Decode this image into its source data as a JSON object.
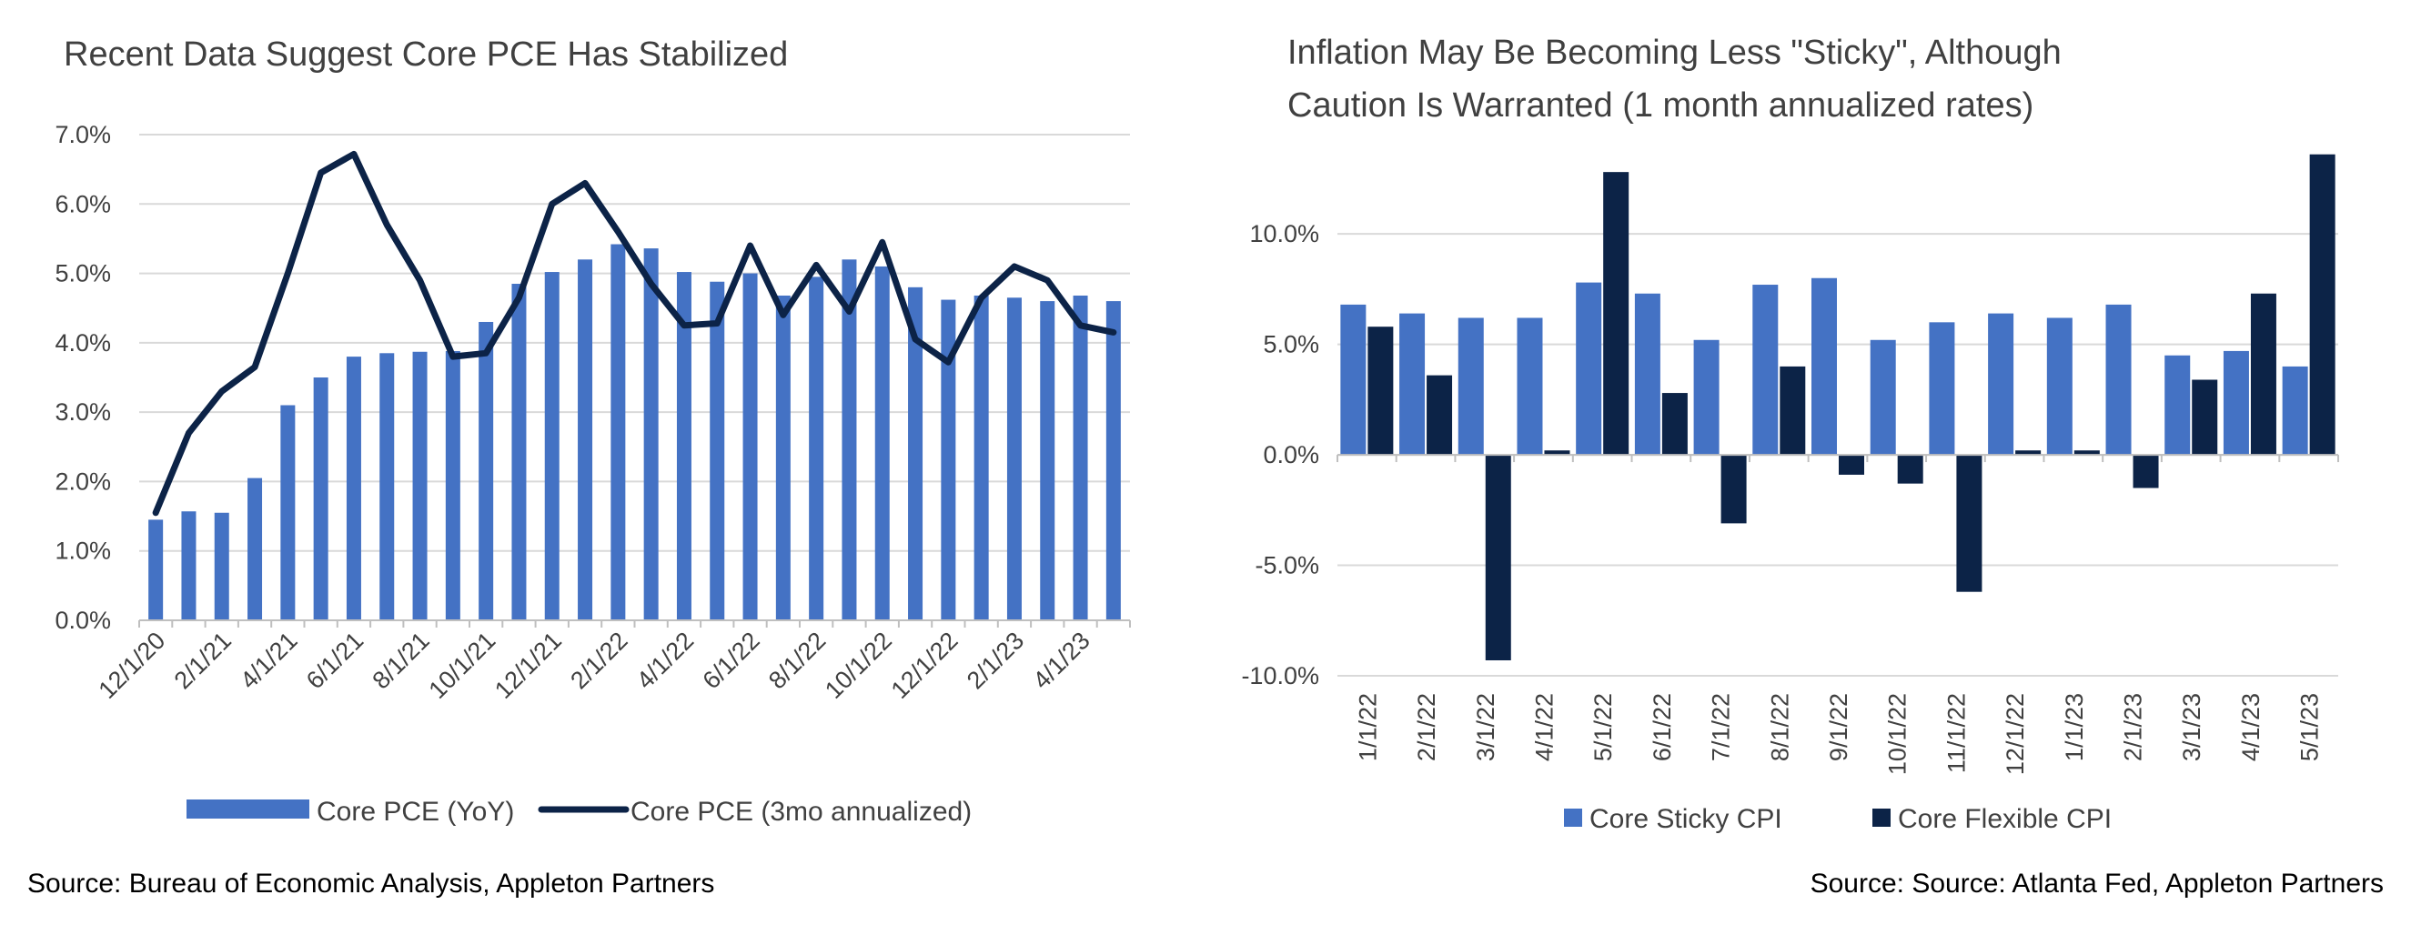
{
  "colors": {
    "bar_blue": "#4472C4",
    "navy": "#0C2347",
    "grid": "#D9D9D9",
    "axis": "#BFBFBF",
    "text": "#404040"
  },
  "left": {
    "title": "Recent Data Suggest Core PCE Has Stabilized",
    "source": "Source: Bureau of Economic Analysis, Appleton Partners"
  },
  "right": {
    "title_line1": "Inflation May Be Becoming Less \"Sticky\", Although",
    "title_line2": "Caution Is Warranted (1 month annualized rates)",
    "source": "Source: Source: Atlanta Fed, Appleton Partners"
  },
  "chart_data": [
    {
      "type": "bar+line",
      "title": "Recent Data Suggest Core PCE Has Stabilized",
      "categories": [
        "12/1/20",
        "1/1/21",
        "2/1/21",
        "3/1/21",
        "4/1/21",
        "5/1/21",
        "6/1/21",
        "7/1/21",
        "8/1/21",
        "9/1/21",
        "10/1/21",
        "11/1/21",
        "12/1/21",
        "1/1/22",
        "2/1/22",
        "3/1/22",
        "4/1/22",
        "5/1/22",
        "6/1/22",
        "7/1/22",
        "8/1/22",
        "9/1/22",
        "10/1/22",
        "11/1/22",
        "12/1/22",
        "1/1/23",
        "2/1/23",
        "3/1/23",
        "4/1/23",
        "5/1/23"
      ],
      "tick_labels": [
        "12/1/20",
        "2/1/21",
        "4/1/21",
        "6/1/21",
        "8/1/21",
        "10/1/21",
        "12/1/21",
        "2/1/22",
        "4/1/22",
        "6/1/22",
        "8/1/22",
        "10/1/22",
        "12/1/22",
        "2/1/23",
        "4/1/23"
      ],
      "series": [
        {
          "name": "Core PCE (YoY)",
          "kind": "bar",
          "values": [
            1.45,
            1.57,
            1.55,
            2.05,
            3.1,
            3.5,
            3.8,
            3.85,
            3.87,
            3.88,
            4.3,
            4.85,
            5.02,
            5.2,
            5.42,
            5.36,
            5.02,
            4.88,
            5.0,
            4.68,
            4.95,
            5.2,
            5.1,
            4.8,
            4.62,
            4.68,
            4.65,
            4.6,
            4.68,
            4.6
          ]
        },
        {
          "name": "Core PCE (3mo annualized)",
          "kind": "line",
          "values": [
            1.55,
            2.7,
            3.3,
            3.65,
            5.0,
            6.45,
            6.72,
            5.7,
            4.9,
            3.8,
            3.85,
            4.65,
            6.0,
            6.3,
            5.6,
            4.85,
            4.25,
            4.28,
            5.4,
            4.4,
            5.12,
            4.45,
            5.45,
            4.05,
            3.72,
            4.65,
            5.1,
            4.9,
            4.25,
            4.15
          ]
        }
      ],
      "ylim": [
        0,
        7
      ],
      "yticks": [
        "0.0%",
        "1.0%",
        "2.0%",
        "3.0%",
        "4.0%",
        "5.0%",
        "6.0%",
        "7.0%"
      ],
      "grid": true,
      "legend": "bottom"
    },
    {
      "type": "bar",
      "title": "Inflation May Be Becoming Less \"Sticky\", Although Caution Is Warranted (1 month annualized rates)",
      "categories": [
        "1/1/22",
        "2/1/22",
        "3/1/22",
        "4/1/22",
        "5/1/22",
        "6/1/22",
        "7/1/22",
        "8/1/22",
        "9/1/22",
        "10/1/22",
        "11/1/22",
        "12/1/22",
        "1/1/23",
        "2/1/23",
        "3/1/23",
        "4/1/23",
        "5/1/23"
      ],
      "series": [
        {
          "name": "Core Sticky CPI",
          "values": [
            6.8,
            6.4,
            6.2,
            6.2,
            7.8,
            7.3,
            5.2,
            7.7,
            8.0,
            5.2,
            6.0,
            6.4,
            6.2,
            6.8,
            4.5,
            4.7,
            4.0
          ]
        },
        {
          "name": "Core Flexible CPI",
          "values": [
            5.8,
            3.6,
            -9.3,
            0.2,
            12.8,
            2.8,
            -3.1,
            4.0,
            -0.9,
            -1.3,
            -6.2,
            0.2,
            0.2,
            -1.5,
            3.4,
            7.3,
            13.6
          ]
        }
      ],
      "ylim": [
        -10,
        14
      ],
      "yticks": [
        "-10.0%",
        "-5.0%",
        "0.0%",
        "5.0%",
        "10.0%"
      ],
      "grid": true,
      "legend": "bottom"
    }
  ]
}
